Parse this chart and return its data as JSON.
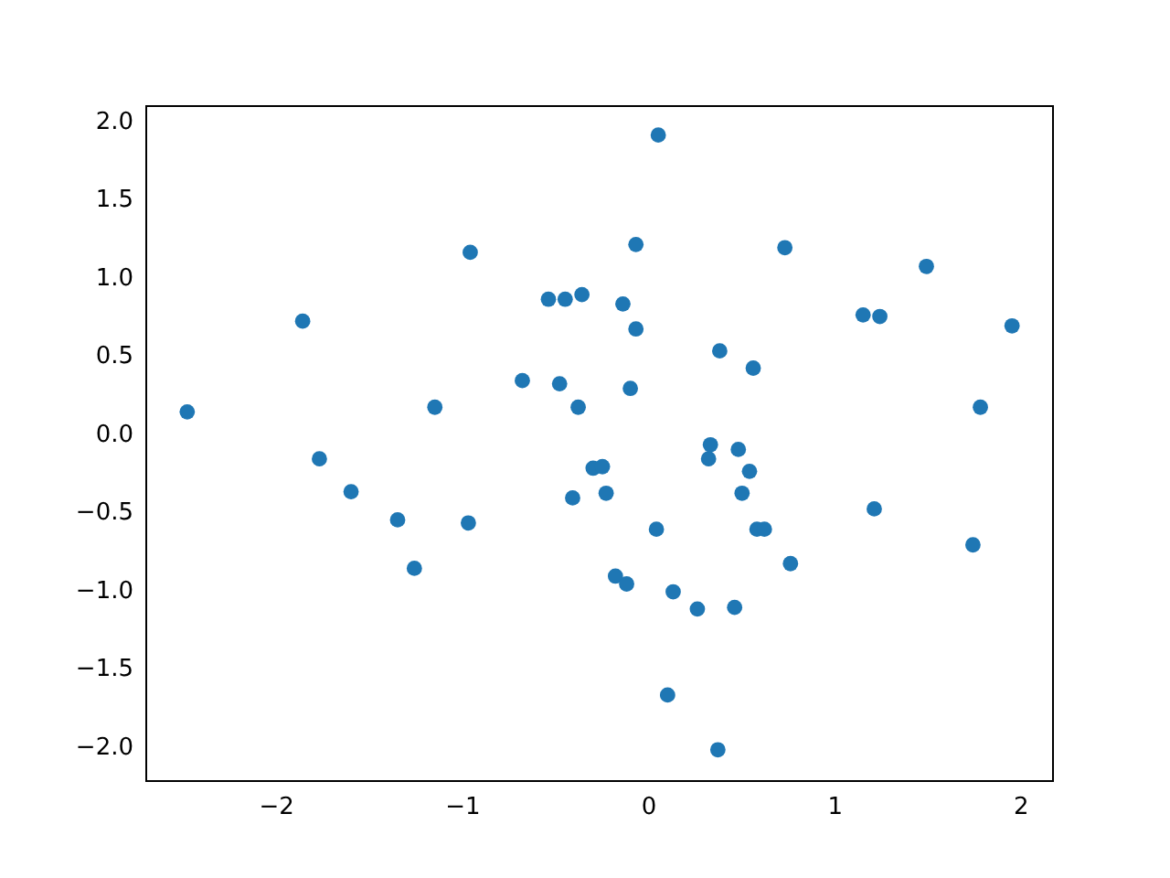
{
  "chart_data": {
    "type": "scatter",
    "marker": "circle",
    "grid": false,
    "legend": false,
    "xlim": [
      -2.7,
      2.17
    ],
    "ylim": [
      -2.21,
      2.105
    ],
    "xticks": [
      -2,
      -1,
      0,
      1,
      2
    ],
    "yticks": [
      {
        "value": -2,
        "label": "−2.0"
      },
      {
        "value": -1.5,
        "label": "−1.5"
      },
      {
        "value": -1,
        "label": "−1.0"
      },
      {
        "value": -0.5,
        "label": "−0.5"
      },
      {
        "value": 0,
        "label": "0.0"
      },
      {
        "value": 0.5,
        "label": "0.5"
      },
      {
        "value": 1,
        "label": "1.0"
      },
      {
        "value": 1.5,
        "label": "1.5"
      },
      {
        "value": 2,
        "label": "2.0"
      }
    ],
    "series": [
      {
        "color": "#1f77b4",
        "x": [
          -2.48,
          -1.86,
          -1.77,
          -1.6,
          -1.35,
          -1.26,
          -1.15,
          -0.97,
          -0.96,
          -0.68,
          -0.54,
          -0.48,
          -0.45,
          -0.41,
          -0.38,
          -0.36,
          -0.3,
          -0.25,
          -0.23,
          -0.18,
          -0.14,
          -0.12,
          -0.1,
          -0.07,
          -0.07,
          0.04,
          0.05,
          0.1,
          0.13,
          0.26,
          0.32,
          0.33,
          0.37,
          0.38,
          0.46,
          0.48,
          0.5,
          0.54,
          0.56,
          0.58,
          0.62,
          0.73,
          0.76,
          1.15,
          1.21,
          1.24,
          1.49,
          1.74,
          1.78,
          1.95
        ],
        "values": [
          0.15,
          0.73,
          -0.15,
          -0.36,
          -0.54,
          -0.85,
          0.18,
          -0.56,
          1.17,
          0.35,
          0.87,
          0.33,
          0.87,
          -0.4,
          0.18,
          0.9,
          -0.21,
          -0.2,
          -0.37,
          -0.9,
          0.84,
          -0.95,
          0.3,
          1.22,
          0.68,
          -0.6,
          1.92,
          -1.66,
          -1.0,
          -1.11,
          -0.15,
          -0.06,
          -2.01,
          0.54,
          -1.1,
          -0.09,
          -0.37,
          -0.23,
          0.43,
          -0.6,
          -0.6,
          1.2,
          -0.82,
          0.77,
          -0.47,
          0.76,
          1.08,
          -0.7,
          0.18,
          0.7
        ]
      }
    ]
  }
}
